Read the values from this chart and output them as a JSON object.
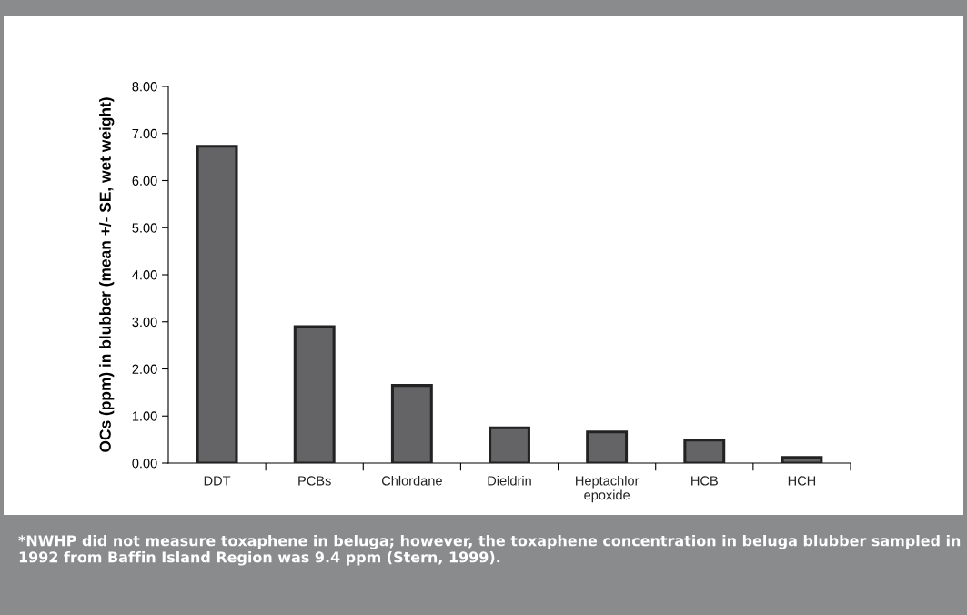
{
  "chart_data": {
    "type": "bar",
    "ylabel": "OCs (ppm) in blubber (mean +/- SE, wet weight)",
    "categories": [
      "DDT",
      "PCBs",
      "Chlordane",
      "Dieldrin",
      "Heptachlor\nepoxide",
      "HCB",
      "HCH"
    ],
    "values": [
      6.73,
      2.9,
      1.65,
      0.75,
      0.66,
      0.49,
      0.12
    ],
    "color": "#646466",
    "ylim": [
      0,
      8
    ],
    "yticks": [
      {
        "value": 0,
        "label": "0.00"
      },
      {
        "value": 1,
        "label": "1.00"
      },
      {
        "value": 2,
        "label": "2.00"
      },
      {
        "value": 3,
        "label": "3.00"
      },
      {
        "value": 4,
        "label": "4.00"
      },
      {
        "value": 5,
        "label": "5.00"
      },
      {
        "value": 6,
        "label": "6.00"
      },
      {
        "value": 7,
        "label": "7.00"
      },
      {
        "value": 8,
        "label": "8.00"
      }
    ],
    "grid": false,
    "annotations": [
      "*NWHP did not measure toxaphene in beluga; however, the toxaphene concentration in beluga blubber sampled in 1992 from Baffin Island Region was 9.4 ppm (Stern, 1999)."
    ]
  }
}
